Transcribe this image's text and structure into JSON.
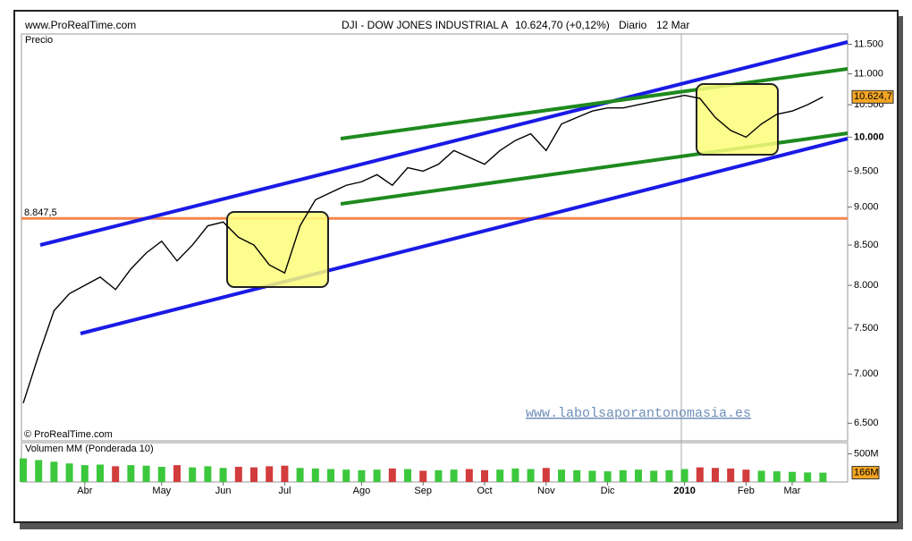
{
  "header": {
    "site": "www.ProRealTime.com",
    "title": "DJI - DOW JONES INDUSTRIAL A",
    "quote": "10.624,70 (+0,12%)",
    "period": "Diario",
    "date": "12 Mar"
  },
  "chart_data": [
    {
      "type": "line",
      "ylabel": "Precio",
      "credit": "© ProRealTime.com",
      "watermark": "www.labolsaporantonomasia.es",
      "log_scale": true,
      "color": "#000000",
      "categories": [
        null,
        null,
        null,
        null,
        "Abr",
        null,
        null,
        null,
        null,
        "May",
        null,
        null,
        null,
        "Jun",
        null,
        null,
        null,
        "Jul",
        null,
        null,
        null,
        null,
        "Ago",
        null,
        null,
        null,
        "Sep",
        null,
        null,
        null,
        "Oct",
        null,
        null,
        null,
        "Nov",
        null,
        null,
        null,
        "Dic",
        null,
        null,
        null,
        null,
        "2010",
        null,
        null,
        null,
        "Feb",
        null,
        null,
        "Mar",
        null,
        null
      ],
      "values": [
        6700,
        7200,
        7700,
        7900,
        8000,
        8100,
        7950,
        8200,
        8400,
        8550,
        8300,
        8500,
        8750,
        8800,
        8600,
        8500,
        8250,
        8150,
        8750,
        9100,
        9200,
        9300,
        9350,
        9450,
        9300,
        9550,
        9500,
        9600,
        9800,
        9700,
        9600,
        9800,
        9950,
        10050,
        9800,
        10200,
        10300,
        10400,
        10450,
        10450,
        10500,
        10550,
        10600,
        10650,
        10600,
        10300,
        10100,
        10000,
        10200,
        10350,
        10400,
        10500,
        10624.7
      ],
      "last_value": {
        "value": 10624.7,
        "label": "10.624,7"
      },
      "hline": {
        "value": 8847.5,
        "label": "8.847,5",
        "color": "#f4874f"
      },
      "ylim": [
        6330,
        11680
      ],
      "yticks": [
        {
          "value": 6500,
          "label": "6.500"
        },
        {
          "value": 7000,
          "label": "7.000"
        },
        {
          "value": 7500,
          "label": "7.500"
        },
        {
          "value": 8000,
          "label": "8.000"
        },
        {
          "value": 8500,
          "label": "8.500"
        },
        {
          "value": 9000,
          "label": "9.000"
        },
        {
          "value": 9500,
          "label": "9.500"
        },
        {
          "value": 10000,
          "label": "10.000"
        },
        {
          "value": 10500,
          "label": "10.500"
        },
        {
          "value": 11000,
          "label": "11.000"
        },
        {
          "value": 11500,
          "label": "11.500"
        }
      ]
    },
    {
      "type": "bar",
      "title": "Volumen MM (Ponderada 10)",
      "up_color": "#3cc83c",
      "down_color": "#d23c3c",
      "values": [
        420,
        390,
        360,
        330,
        300,
        310,
        280,
        300,
        290,
        270,
        300,
        260,
        280,
        250,
        270,
        260,
        280,
        290,
        250,
        240,
        230,
        220,
        210,
        220,
        240,
        230,
        200,
        210,
        220,
        230,
        210,
        220,
        240,
        230,
        250,
        220,
        210,
        200,
        190,
        210,
        220,
        200,
        210,
        230,
        260,
        250,
        240,
        220,
        200,
        190,
        180,
        170,
        166
      ],
      "last_value": {
        "value": 166,
        "label": "166M"
      },
      "ylim": [
        0,
        700
      ],
      "yticks": [
        {
          "value": 500,
          "label": "500M"
        }
      ]
    }
  ]
}
